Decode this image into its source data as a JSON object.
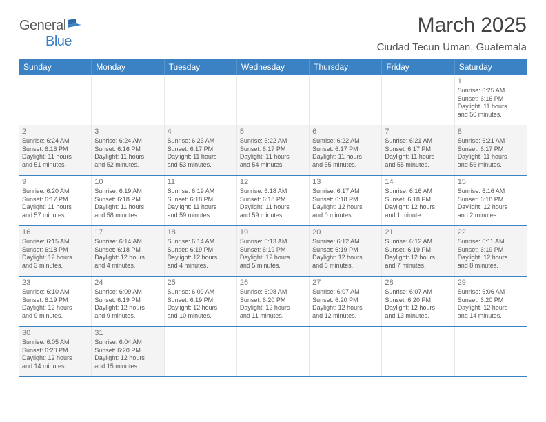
{
  "logo": {
    "text1": "General",
    "text2": "Blue"
  },
  "title": "March 2025",
  "location": "Ciudad Tecun Uman, Guatemala",
  "weekdays": [
    "Sunday",
    "Monday",
    "Tuesday",
    "Wednesday",
    "Thursday",
    "Friday",
    "Saturday"
  ],
  "colors": {
    "header_bg": "#3b82c4",
    "row_border": "#3b82c4",
    "shaded": "#f4f4f4",
    "text": "#555555"
  },
  "weeks": [
    [
      {
        "blank": true
      },
      {
        "blank": true
      },
      {
        "blank": true
      },
      {
        "blank": true
      },
      {
        "blank": true
      },
      {
        "blank": true
      },
      {
        "n": "1",
        "sr": "Sunrise: 6:25 AM",
        "ss": "Sunset: 6:16 PM",
        "d1": "Daylight: 11 hours",
        "d2": "and 50 minutes."
      }
    ],
    [
      {
        "n": "2",
        "sr": "Sunrise: 6:24 AM",
        "ss": "Sunset: 6:16 PM",
        "d1": "Daylight: 11 hours",
        "d2": "and 51 minutes.",
        "sh": true
      },
      {
        "n": "3",
        "sr": "Sunrise: 6:24 AM",
        "ss": "Sunset: 6:16 PM",
        "d1": "Daylight: 11 hours",
        "d2": "and 52 minutes.",
        "sh": true
      },
      {
        "n": "4",
        "sr": "Sunrise: 6:23 AM",
        "ss": "Sunset: 6:17 PM",
        "d1": "Daylight: 11 hours",
        "d2": "and 53 minutes.",
        "sh": true
      },
      {
        "n": "5",
        "sr": "Sunrise: 6:22 AM",
        "ss": "Sunset: 6:17 PM",
        "d1": "Daylight: 11 hours",
        "d2": "and 54 minutes.",
        "sh": true
      },
      {
        "n": "6",
        "sr": "Sunrise: 6:22 AM",
        "ss": "Sunset: 6:17 PM",
        "d1": "Daylight: 11 hours",
        "d2": "and 55 minutes.",
        "sh": true
      },
      {
        "n": "7",
        "sr": "Sunrise: 6:21 AM",
        "ss": "Sunset: 6:17 PM",
        "d1": "Daylight: 11 hours",
        "d2": "and 55 minutes.",
        "sh": true
      },
      {
        "n": "8",
        "sr": "Sunrise: 6:21 AM",
        "ss": "Sunset: 6:17 PM",
        "d1": "Daylight: 11 hours",
        "d2": "and 56 minutes.",
        "sh": true
      }
    ],
    [
      {
        "n": "9",
        "sr": "Sunrise: 6:20 AM",
        "ss": "Sunset: 6:17 PM",
        "d1": "Daylight: 11 hours",
        "d2": "and 57 minutes."
      },
      {
        "n": "10",
        "sr": "Sunrise: 6:19 AM",
        "ss": "Sunset: 6:18 PM",
        "d1": "Daylight: 11 hours",
        "d2": "and 58 minutes."
      },
      {
        "n": "11",
        "sr": "Sunrise: 6:19 AM",
        "ss": "Sunset: 6:18 PM",
        "d1": "Daylight: 11 hours",
        "d2": "and 59 minutes."
      },
      {
        "n": "12",
        "sr": "Sunrise: 6:18 AM",
        "ss": "Sunset: 6:18 PM",
        "d1": "Daylight: 11 hours",
        "d2": "and 59 minutes."
      },
      {
        "n": "13",
        "sr": "Sunrise: 6:17 AM",
        "ss": "Sunset: 6:18 PM",
        "d1": "Daylight: 12 hours",
        "d2": "and 0 minutes."
      },
      {
        "n": "14",
        "sr": "Sunrise: 6:16 AM",
        "ss": "Sunset: 6:18 PM",
        "d1": "Daylight: 12 hours",
        "d2": "and 1 minute."
      },
      {
        "n": "15",
        "sr": "Sunrise: 6:16 AM",
        "ss": "Sunset: 6:18 PM",
        "d1": "Daylight: 12 hours",
        "d2": "and 2 minutes."
      }
    ],
    [
      {
        "n": "16",
        "sr": "Sunrise: 6:15 AM",
        "ss": "Sunset: 6:18 PM",
        "d1": "Daylight: 12 hours",
        "d2": "and 3 minutes.",
        "sh": true
      },
      {
        "n": "17",
        "sr": "Sunrise: 6:14 AM",
        "ss": "Sunset: 6:18 PM",
        "d1": "Daylight: 12 hours",
        "d2": "and 4 minutes.",
        "sh": true
      },
      {
        "n": "18",
        "sr": "Sunrise: 6:14 AM",
        "ss": "Sunset: 6:19 PM",
        "d1": "Daylight: 12 hours",
        "d2": "and 4 minutes.",
        "sh": true
      },
      {
        "n": "19",
        "sr": "Sunrise: 6:13 AM",
        "ss": "Sunset: 6:19 PM",
        "d1": "Daylight: 12 hours",
        "d2": "and 5 minutes.",
        "sh": true
      },
      {
        "n": "20",
        "sr": "Sunrise: 6:12 AM",
        "ss": "Sunset: 6:19 PM",
        "d1": "Daylight: 12 hours",
        "d2": "and 6 minutes.",
        "sh": true
      },
      {
        "n": "21",
        "sr": "Sunrise: 6:12 AM",
        "ss": "Sunset: 6:19 PM",
        "d1": "Daylight: 12 hours",
        "d2": "and 7 minutes.",
        "sh": true
      },
      {
        "n": "22",
        "sr": "Sunrise: 6:11 AM",
        "ss": "Sunset: 6:19 PM",
        "d1": "Daylight: 12 hours",
        "d2": "and 8 minutes.",
        "sh": true
      }
    ],
    [
      {
        "n": "23",
        "sr": "Sunrise: 6:10 AM",
        "ss": "Sunset: 6:19 PM",
        "d1": "Daylight: 12 hours",
        "d2": "and 9 minutes."
      },
      {
        "n": "24",
        "sr": "Sunrise: 6:09 AM",
        "ss": "Sunset: 6:19 PM",
        "d1": "Daylight: 12 hours",
        "d2": "and 9 minutes."
      },
      {
        "n": "25",
        "sr": "Sunrise: 6:09 AM",
        "ss": "Sunset: 6:19 PM",
        "d1": "Daylight: 12 hours",
        "d2": "and 10 minutes."
      },
      {
        "n": "26",
        "sr": "Sunrise: 6:08 AM",
        "ss": "Sunset: 6:20 PM",
        "d1": "Daylight: 12 hours",
        "d2": "and 11 minutes."
      },
      {
        "n": "27",
        "sr": "Sunrise: 6:07 AM",
        "ss": "Sunset: 6:20 PM",
        "d1": "Daylight: 12 hours",
        "d2": "and 12 minutes."
      },
      {
        "n": "28",
        "sr": "Sunrise: 6:07 AM",
        "ss": "Sunset: 6:20 PM",
        "d1": "Daylight: 12 hours",
        "d2": "and 13 minutes."
      },
      {
        "n": "29",
        "sr": "Sunrise: 6:06 AM",
        "ss": "Sunset: 6:20 PM",
        "d1": "Daylight: 12 hours",
        "d2": "and 14 minutes."
      }
    ],
    [
      {
        "n": "30",
        "sr": "Sunrise: 6:05 AM",
        "ss": "Sunset: 6:20 PM",
        "d1": "Daylight: 12 hours",
        "d2": "and 14 minutes.",
        "sh": true
      },
      {
        "n": "31",
        "sr": "Sunrise: 6:04 AM",
        "ss": "Sunset: 6:20 PM",
        "d1": "Daylight: 12 hours",
        "d2": "and 15 minutes.",
        "sh": true
      },
      {
        "blank": true
      },
      {
        "blank": true
      },
      {
        "blank": true
      },
      {
        "blank": true
      },
      {
        "blank": true
      }
    ]
  ]
}
